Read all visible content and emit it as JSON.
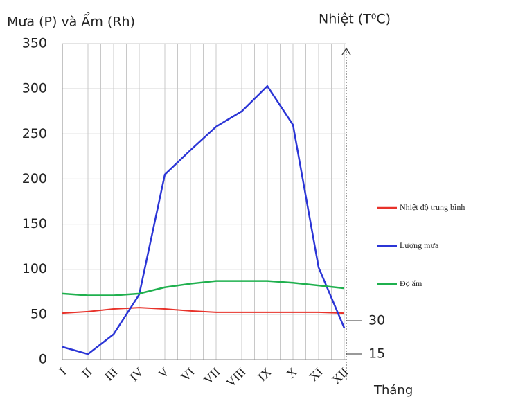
{
  "chart_data": {
    "type": "line",
    "y_label": "Mưa (P) và Ẩm (Rh)",
    "y2_label": "Nhiệt (T⁰C)",
    "x_label": "Tháng",
    "categories": [
      "I",
      "II",
      "III",
      "IV",
      "V",
      "VI",
      "VII",
      "VIII",
      "IX",
      "X",
      "XI",
      "XII"
    ],
    "series": [
      {
        "name": "Nhiệt độ trung bình",
        "color": "#e8322a",
        "axis": "y2",
        "values": [
          33.4,
          34.1,
          35.3,
          35.9,
          35.3,
          34.4,
          33.8,
          33.8,
          33.8,
          33.8,
          33.8,
          33.4
        ]
      },
      {
        "name": "Lượng mưa",
        "color": "#2b35d6",
        "values": [
          14,
          6,
          28,
          72,
          205,
          232,
          258,
          275,
          303,
          260,
          102,
          35
        ]
      },
      {
        "name": "Độ ẩm",
        "color": "#1fb04e",
        "values": [
          73,
          71,
          71,
          73,
          80,
          84,
          87,
          87,
          87,
          85,
          82,
          79
        ]
      }
    ],
    "ylim": [
      0,
      350
    ],
    "yticks": [
      0,
      50,
      100,
      150,
      200,
      250,
      300,
      350
    ],
    "y2lim": [
      12.5,
      155
    ],
    "y2ticks": [
      15,
      30
    ],
    "grid": true,
    "legend": "right"
  }
}
